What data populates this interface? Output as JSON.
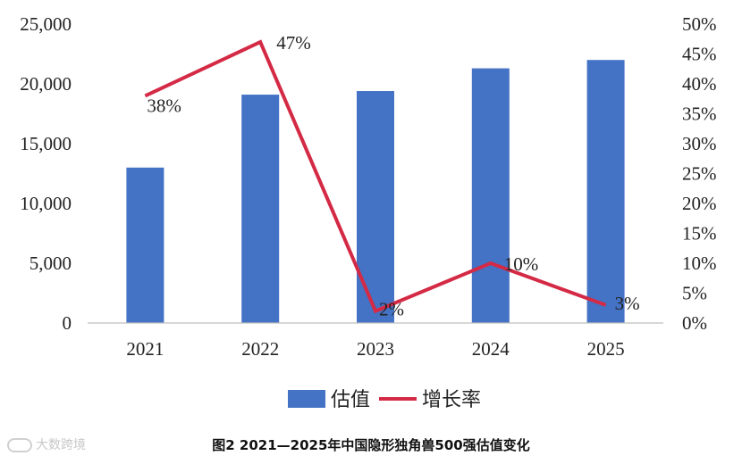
{
  "chart_data": {
    "type": "bar",
    "categories": [
      "2021",
      "2022",
      "2023",
      "2024",
      "2025"
    ],
    "series": [
      {
        "name": "估值",
        "type": "bar",
        "axis": "left",
        "values": [
          13000,
          19100,
          19400,
          21300,
          22000
        ],
        "color": "#4472C4"
      },
      {
        "name": "增长率",
        "type": "line",
        "axis": "right",
        "values": [
          38,
          47,
          2,
          10,
          3
        ],
        "labels": [
          "38%",
          "47%",
          "2%",
          "10%",
          "3%"
        ],
        "color": "#D42A45"
      }
    ],
    "y_left": {
      "ylim": [
        0,
        25000
      ],
      "ticks": [
        "0",
        "5,000",
        "10,000",
        "15,000",
        "20,000",
        "25,000"
      ]
    },
    "y_right": {
      "ylim": [
        0,
        50
      ],
      "ticks": [
        "0%",
        "5%",
        "10%",
        "15%",
        "20%",
        "25%",
        "30%",
        "35%",
        "40%",
        "45%",
        "50%"
      ]
    },
    "grid": false,
    "legend_position": "bottom"
  },
  "legend": {
    "bar_label": "估值",
    "line_label": "增长率"
  },
  "caption": "图2 2021—2025年中国隐形独角兽500强估值变化",
  "watermark": "大数跨境"
}
